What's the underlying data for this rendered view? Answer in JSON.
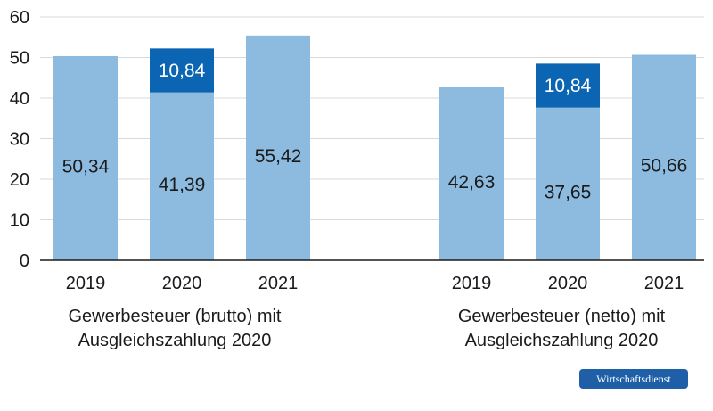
{
  "colors": {
    "base": "#8dbadf",
    "compensation": "#0c65b2",
    "grid": "#d9d9d9",
    "axis": "#1a1a1a"
  },
  "badge": {
    "text": "Wirtschaftsdienst"
  },
  "chart_data": {
    "type": "bar",
    "stacked": true,
    "ylim": [
      0,
      60
    ],
    "yticks": [
      0,
      10,
      20,
      30,
      40,
      50,
      60
    ],
    "grid": true,
    "groups": [
      {
        "label_lines": [
          "Gewerbesteuer (brutto) mit",
          "Ausgleichszahlung 2020"
        ],
        "bars": [
          {
            "category": "2019",
            "base": 50.34,
            "base_label": "50,34",
            "compensation": null,
            "compensation_label": ""
          },
          {
            "category": "2020",
            "base": 41.39,
            "base_label": "41,39",
            "compensation": 10.84,
            "compensation_label": "10,84"
          },
          {
            "category": "2021",
            "base": 55.42,
            "base_label": "55,42",
            "compensation": null,
            "compensation_label": ""
          }
        ]
      },
      {
        "label_lines": [
          "Gewerbesteuer (netto) mit",
          "Ausgleichszahlung 2020"
        ],
        "bars": [
          {
            "category": "2019",
            "base": 42.63,
            "base_label": "42,63",
            "compensation": null,
            "compensation_label": ""
          },
          {
            "category": "2020",
            "base": 37.65,
            "base_label": "37,65",
            "compensation": 10.84,
            "compensation_label": "10,84"
          },
          {
            "category": "2021",
            "base": 50.66,
            "base_label": "50,66",
            "compensation": null,
            "compensation_label": ""
          }
        ]
      }
    ]
  }
}
